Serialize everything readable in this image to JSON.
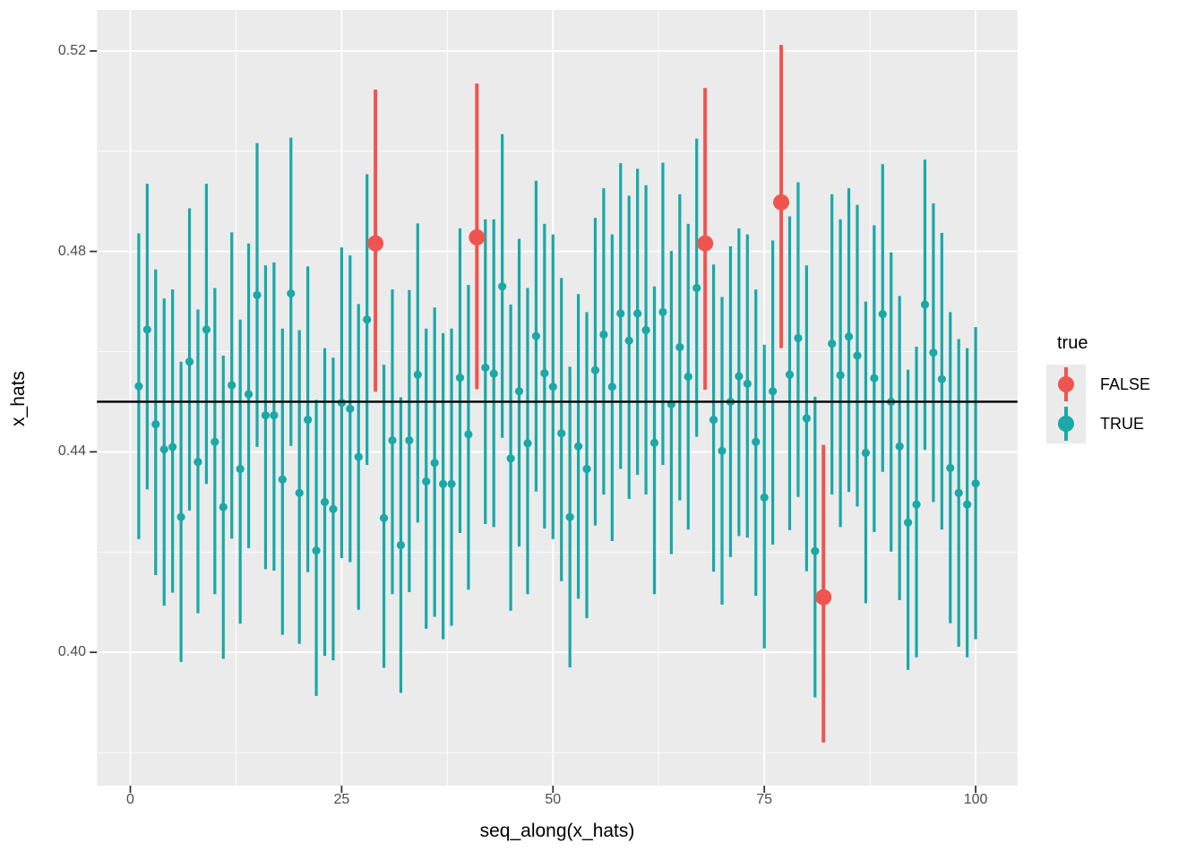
{
  "chart_data": {
    "type": "pointrange",
    "title": "",
    "xlabel": "seq_along(x_hats)",
    "ylabel": "x_hats",
    "xlim": [
      -3.95,
      104.95
    ],
    "ylim": [
      0.3734,
      0.5282
    ],
    "x_major_ticks": [
      0,
      25,
      50,
      75,
      100
    ],
    "x_tick_labels": [
      "0",
      "25",
      "50",
      "75",
      "100"
    ],
    "x_minor_ticks": [
      12.5,
      37.5,
      62.5,
      87.5
    ],
    "y_major_ticks": [
      0.4,
      0.44,
      0.48,
      0.52
    ],
    "y_tick_labels": [
      "0.40",
      "0.44",
      "0.48",
      "0.52"
    ],
    "y_minor_ticks": [
      0.38,
      0.42,
      0.46,
      0.5
    ],
    "hline": 0.45,
    "grid": true,
    "legend_position": "right",
    "legend": {
      "title": "true",
      "entries": [
        {
          "label": "FALSE",
          "color": "#F0544F"
        },
        {
          "label": "TRUE",
          "color": "#1AA8A8"
        }
      ]
    },
    "colors": {
      "panel_background": "#EBEBEB",
      "gridline": "#FFFFFF",
      "hline": "#000000",
      "false_group": "#F0544F",
      "true_group": "#1AA8A8",
      "axis_text": "#4D4D4D",
      "axis_title": "#000000"
    },
    "columns": [
      "x",
      "y",
      "ymin",
      "ymax",
      "is_true"
    ],
    "points": [
      [
        1,
        0.4531,
        0.4226,
        0.4836,
        1
      ],
      [
        2,
        0.4644,
        0.4325,
        0.4935,
        1
      ],
      [
        3,
        0.4455,
        0.4154,
        0.4764,
        1
      ],
      [
        4,
        0.4405,
        0.4093,
        0.4706,
        1
      ],
      [
        5,
        0.441,
        0.4119,
        0.4724,
        1
      ],
      [
        6,
        0.427,
        0.3981,
        0.458,
        1
      ],
      [
        7,
        0.458,
        0.4283,
        0.4886,
        1
      ],
      [
        8,
        0.438,
        0.4078,
        0.4684,
        1
      ],
      [
        9,
        0.4644,
        0.4336,
        0.4935,
        1
      ],
      [
        10,
        0.442,
        0.4116,
        0.4727,
        1
      ],
      [
        11,
        0.429,
        0.3987,
        0.4592,
        1
      ],
      [
        12,
        0.4533,
        0.4227,
        0.4838,
        1
      ],
      [
        13,
        0.4366,
        0.4057,
        0.4664,
        1
      ],
      [
        14,
        0.4515,
        0.4208,
        0.4816,
        1
      ],
      [
        15,
        0.4713,
        0.441,
        0.5016,
        1
      ],
      [
        16,
        0.4473,
        0.4166,
        0.4772,
        1
      ],
      [
        17,
        0.4473,
        0.4163,
        0.4778,
        1
      ],
      [
        18,
        0.4345,
        0.4035,
        0.4646,
        1
      ],
      [
        19,
        0.4716,
        0.4412,
        0.5027,
        1
      ],
      [
        20,
        0.4318,
        0.4017,
        0.4643,
        1
      ],
      [
        21,
        0.4464,
        0.416,
        0.477,
        1
      ],
      [
        22,
        0.4203,
        0.3913,
        0.4504,
        1
      ],
      [
        23,
        0.43,
        0.3993,
        0.4607,
        1
      ],
      [
        24,
        0.4286,
        0.3984,
        0.4588,
        1
      ],
      [
        25,
        0.4498,
        0.4188,
        0.4808,
        1
      ],
      [
        26,
        0.4486,
        0.418,
        0.4792,
        1
      ],
      [
        27,
        0.439,
        0.4085,
        0.4695,
        1
      ],
      [
        28,
        0.4664,
        0.4374,
        0.4954,
        1
      ],
      [
        29,
        0.4816,
        0.452,
        0.5123,
        0
      ],
      [
        30,
        0.4268,
        0.3969,
        0.4574,
        1
      ],
      [
        31,
        0.4423,
        0.4116,
        0.4724,
        1
      ],
      [
        32,
        0.4214,
        0.3919,
        0.4509,
        1
      ],
      [
        33,
        0.4423,
        0.412,
        0.4723,
        1
      ],
      [
        34,
        0.4554,
        0.4259,
        0.4856,
        1
      ],
      [
        35,
        0.4341,
        0.4047,
        0.4646,
        1
      ],
      [
        36,
        0.4378,
        0.4071,
        0.4688,
        1
      ],
      [
        37,
        0.4336,
        0.4026,
        0.4637,
        1
      ],
      [
        38,
        0.4336,
        0.4053,
        0.4646,
        1
      ],
      [
        39,
        0.4548,
        0.4238,
        0.4846,
        1
      ],
      [
        40,
        0.4435,
        0.4125,
        0.4733,
        1
      ],
      [
        41,
        0.4828,
        0.4525,
        0.5135,
        0
      ],
      [
        42,
        0.4568,
        0.4256,
        0.4864,
        1
      ],
      [
        43,
        0.4556,
        0.425,
        0.4864,
        1
      ],
      [
        44,
        0.473,
        0.4428,
        0.5034,
        1
      ],
      [
        45,
        0.4387,
        0.4083,
        0.4694,
        1
      ],
      [
        46,
        0.4521,
        0.4211,
        0.4825,
        1
      ],
      [
        47,
        0.4417,
        0.4116,
        0.4727,
        1
      ],
      [
        48,
        0.4631,
        0.4321,
        0.4941,
        1
      ],
      [
        49,
        0.4557,
        0.4247,
        0.4855,
        1
      ],
      [
        50,
        0.453,
        0.4226,
        0.4834,
        1
      ],
      [
        51,
        0.4437,
        0.4142,
        0.4747,
        1
      ],
      [
        52,
        0.427,
        0.397,
        0.457,
        1
      ],
      [
        53,
        0.4411,
        0.4107,
        0.4715,
        1
      ],
      [
        54,
        0.4366,
        0.4068,
        0.4679,
        1
      ],
      [
        55,
        0.4563,
        0.4253,
        0.4867,
        1
      ],
      [
        56,
        0.4634,
        0.4315,
        0.4926,
        1
      ],
      [
        57,
        0.453,
        0.4222,
        0.4834,
        1
      ],
      [
        58,
        0.4676,
        0.4366,
        0.4976,
        1
      ],
      [
        59,
        0.4622,
        0.4306,
        0.4911,
        1
      ],
      [
        60,
        0.4676,
        0.4354,
        0.4965,
        1
      ],
      [
        61,
        0.4643,
        0.4315,
        0.4932,
        1
      ],
      [
        62,
        0.4418,
        0.4116,
        0.473,
        1
      ],
      [
        63,
        0.4679,
        0.4374,
        0.4977,
        1
      ],
      [
        64,
        0.4495,
        0.4196,
        0.4801,
        1
      ],
      [
        65,
        0.4609,
        0.4303,
        0.4914,
        1
      ],
      [
        66,
        0.455,
        0.4245,
        0.4855,
        1
      ],
      [
        67,
        0.4727,
        0.443,
        0.5025,
        1
      ],
      [
        68,
        0.4816,
        0.4524,
        0.5126,
        0
      ],
      [
        69,
        0.4464,
        0.4161,
        0.4774,
        1
      ],
      [
        70,
        0.4402,
        0.4095,
        0.4709,
        1
      ],
      [
        71,
        0.45,
        0.419,
        0.481,
        1
      ],
      [
        72,
        0.4551,
        0.4232,
        0.4846,
        1
      ],
      [
        73,
        0.4536,
        0.4229,
        0.4834,
        1
      ],
      [
        74,
        0.442,
        0.4113,
        0.4724,
        1
      ],
      [
        75,
        0.4309,
        0.4008,
        0.4614,
        1
      ],
      [
        76,
        0.4521,
        0.4215,
        0.4822,
        1
      ],
      [
        77,
        0.4898,
        0.4607,
        0.5212,
        0
      ],
      [
        78,
        0.4554,
        0.4244,
        0.487,
        1
      ],
      [
        79,
        0.4627,
        0.431,
        0.4938,
        1
      ],
      [
        80,
        0.4467,
        0.4162,
        0.4772,
        1
      ],
      [
        81,
        0.4202,
        0.391,
        0.451,
        1
      ],
      [
        82,
        0.411,
        0.382,
        0.4414,
        0
      ],
      [
        83,
        0.4616,
        0.4315,
        0.4914,
        1
      ],
      [
        84,
        0.4553,
        0.425,
        0.4864,
        1
      ],
      [
        85,
        0.463,
        0.432,
        0.4926,
        1
      ],
      [
        86,
        0.4592,
        0.4291,
        0.4893,
        1
      ],
      [
        87,
        0.4398,
        0.4098,
        0.47,
        1
      ],
      [
        88,
        0.4547,
        0.424,
        0.4852,
        1
      ],
      [
        89,
        0.4675,
        0.436,
        0.4974,
        1
      ],
      [
        90,
        0.45,
        0.4201,
        0.4798,
        1
      ],
      [
        91,
        0.4411,
        0.4104,
        0.4711,
        1
      ],
      [
        92,
        0.4259,
        0.3965,
        0.4564,
        1
      ],
      [
        93,
        0.4295,
        0.399,
        0.461,
        1
      ],
      [
        94,
        0.4694,
        0.4404,
        0.4983,
        1
      ],
      [
        95,
        0.4598,
        0.43,
        0.4896,
        1
      ],
      [
        96,
        0.4545,
        0.4245,
        0.4837,
        1
      ],
      [
        97,
        0.4368,
        0.4058,
        0.4679,
        1
      ],
      [
        98,
        0.4318,
        0.4011,
        0.4625,
        1
      ],
      [
        99,
        0.4295,
        0.399,
        0.4607,
        1
      ],
      [
        100,
        0.4337,
        0.4026,
        0.4649,
        1
      ]
    ]
  }
}
